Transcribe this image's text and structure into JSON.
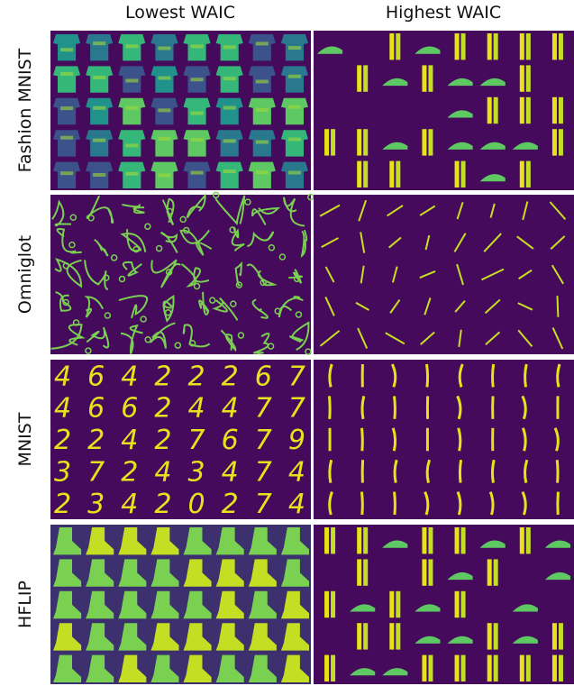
{
  "header": {
    "columns": [
      "Lowest WAIC",
      "Highest WAIC"
    ]
  },
  "rows": [
    {
      "label": "Fashion MNIST"
    },
    {
      "label": "Omniglot"
    },
    {
      "label": "MNIST",
      "lowest_digits": [
        "46422267",
        "46624477",
        "22427679",
        "37243474",
        "23420274"
      ]
    },
    {
      "label": "HFLIP"
    }
  ]
}
